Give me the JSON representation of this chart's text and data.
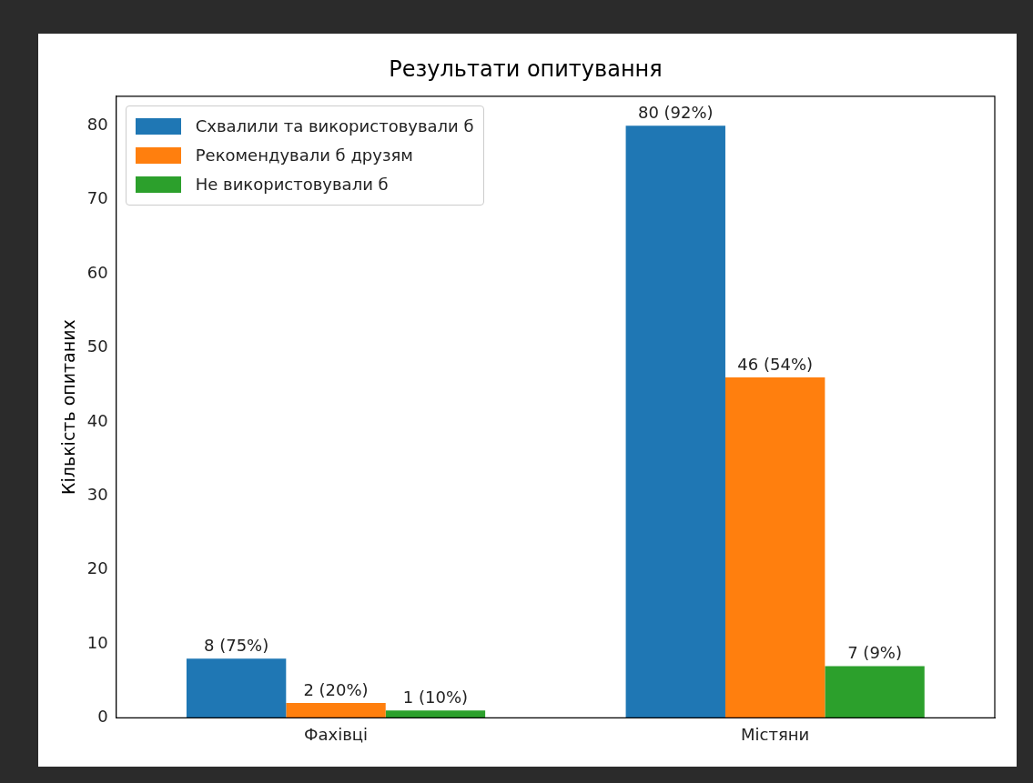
{
  "chart_data": {
    "type": "bar",
    "title": "Результати опитування",
    "ylabel": "Кількість опитаних",
    "categories": [
      "Фахівці",
      "Містяни"
    ],
    "series": [
      {
        "name": "Схвалили та використовували б",
        "color": "#1f77b4",
        "values": [
          8,
          80
        ],
        "value_labels": [
          "8 (75%)",
          "80 (92%)"
        ]
      },
      {
        "name": "Рекомендували б друзям",
        "color": "#ff7f0e",
        "values": [
          2,
          46
        ],
        "value_labels": [
          "2 (20%)",
          "46 (54%)"
        ]
      },
      {
        "name": "Не використовували б",
        "color": "#2ca02c",
        "values": [
          1,
          7
        ],
        "value_labels": [
          "1 (10%)",
          "7 (9%)"
        ]
      }
    ],
    "ylim": [
      0,
      84
    ],
    "yticks": [
      0,
      10,
      20,
      30,
      40,
      50,
      60,
      70,
      80
    ],
    "grid": false,
    "legend": "top left"
  }
}
